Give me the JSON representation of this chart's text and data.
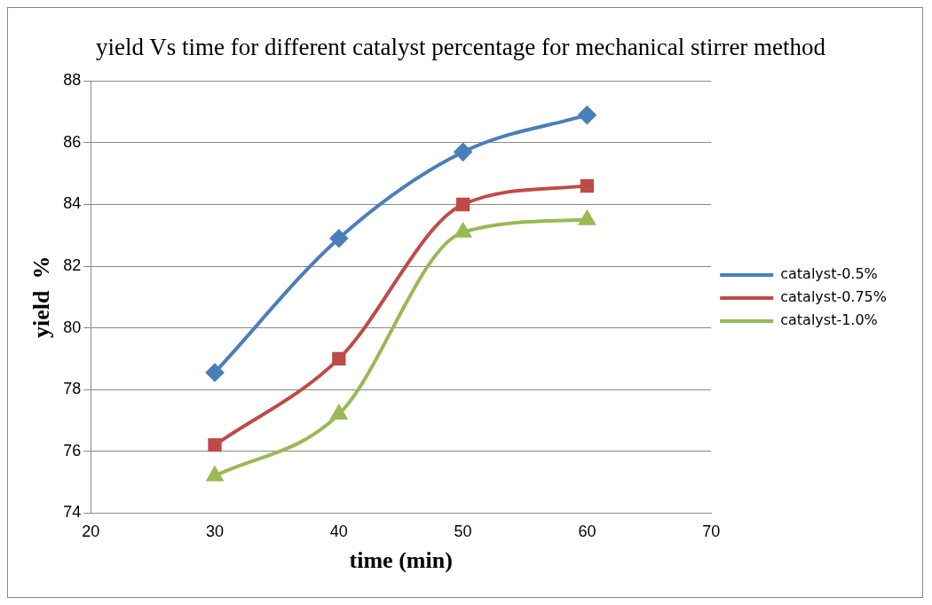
{
  "chart_data": {
    "type": "line",
    "title": "yield Vs time for different catalyst percentage for mechanical stirrer method",
    "xlabel": "time (min)",
    "ylabel": "yield  %",
    "x": [
      30,
      40,
      50,
      60
    ],
    "xlim": [
      20,
      70
    ],
    "xticks": [
      20,
      30,
      40,
      50,
      60,
      70
    ],
    "ylim": [
      74,
      88
    ],
    "yticks": [
      74,
      76,
      78,
      80,
      82,
      84,
      86,
      88
    ],
    "grid": "y",
    "legend": "right",
    "series": [
      {
        "name": "catalyst-0.5%",
        "color": "#4a7ebb",
        "marker": "diamond",
        "values": [
          78.55,
          82.9,
          85.7,
          86.9
        ]
      },
      {
        "name": "catalyst-0.75%",
        "color": "#be4b48",
        "marker": "square",
        "values": [
          76.2,
          79.0,
          84.0,
          84.6
        ]
      },
      {
        "name": "catalyst-1.0%",
        "color": "#98b954",
        "marker": "triangle",
        "values": [
          75.2,
          77.2,
          83.1,
          83.5
        ]
      }
    ]
  }
}
